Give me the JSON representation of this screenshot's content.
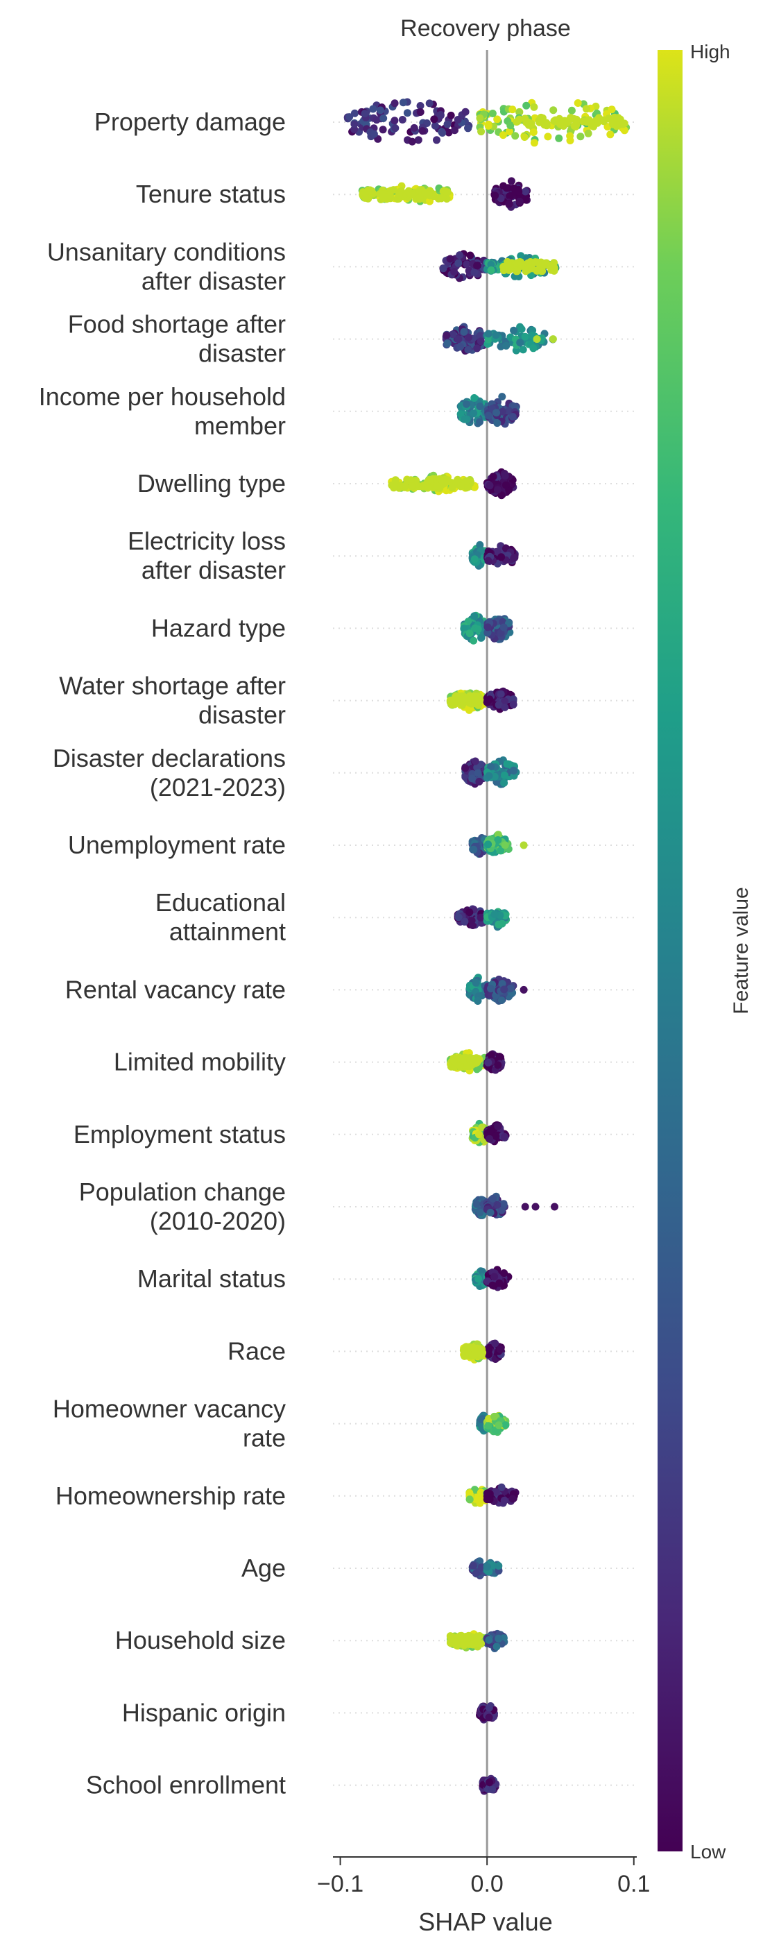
{
  "chart_data": {
    "type": "scatter",
    "subtype": "shap-beeswarm",
    "title": "Recovery phase",
    "xlabel": "SHAP value",
    "xlim": [
      -0.105,
      0.102
    ],
    "xticks": [
      {
        "value": -0.1,
        "label": "−0.1"
      },
      {
        "value": 0.0,
        "label": "0.0"
      },
      {
        "value": 0.1,
        "label": "0.1"
      }
    ],
    "colorbar": {
      "label": "Feature value",
      "high_label": "High",
      "low_label": "Low",
      "colormap": "viridis"
    },
    "features": [
      {
        "name": "Property damage",
        "neg": [
          -0.095,
          -0.012,
          1.0
        ],
        "pos": [
          -0.005,
          0.095,
          1.0
        ],
        "neg_color": 0.15,
        "pos_color": 0.95,
        "yellow_tail": [
          0.02,
          0.095
        ],
        "outliers": []
      },
      {
        "name": "Tenure status",
        "neg": [
          -0.085,
          -0.02,
          0.4
        ],
        "pos": [
          0.005,
          0.028,
          0.55
        ],
        "neg_color": 0.97,
        "pos_color": 0.02,
        "yellow_tail": [
          -0.085,
          -0.025
        ],
        "outliers": []
      },
      {
        "name": "Unsanitary conditions\nafter disaster",
        "neg": [
          -0.03,
          0.0,
          0.55
        ],
        "pos": [
          0.0,
          0.047,
          0.45
        ],
        "neg_color": 0.1,
        "pos_color": 0.6,
        "yellow_tail": [
          0.01,
          0.047
        ],
        "outliers": []
      },
      {
        "name": "Food shortage after\ndisaster",
        "neg": [
          -0.028,
          0.0,
          0.55
        ],
        "pos": [
          0.0,
          0.045,
          0.5
        ],
        "neg_color": 0.2,
        "pos_color": 0.55,
        "yellow_tail": [],
        "outliers": [
          0.034,
          0.045
        ]
      },
      {
        "name": "Income per household\nmember",
        "neg": [
          -0.018,
          0.0,
          0.6
        ],
        "pos": [
          0.0,
          0.02,
          0.6
        ],
        "neg_color": 0.5,
        "pos_color": 0.25,
        "yellow_tail": [],
        "outliers": []
      },
      {
        "name": "Dwelling type",
        "neg": [
          -0.065,
          -0.005,
          0.35
        ],
        "pos": [
          0.0,
          0.018,
          0.5
        ],
        "neg_color": 0.97,
        "pos_color": 0.02,
        "yellow_tail": [
          -0.065,
          -0.01
        ],
        "outliers": []
      },
      {
        "name": "Electricity loss\nafter disaster",
        "neg": [
          -0.01,
          0.0,
          0.45
        ],
        "pos": [
          0.0,
          0.02,
          0.45
        ],
        "neg_color": 0.55,
        "pos_color": 0.05,
        "yellow_tail": [],
        "outliers": []
      },
      {
        "name": "Hazard type",
        "neg": [
          -0.016,
          0.0,
          0.55
        ],
        "pos": [
          0.0,
          0.016,
          0.55
        ],
        "neg_color": 0.6,
        "pos_color": 0.3,
        "yellow_tail": [],
        "outliers": []
      },
      {
        "name": "Water shortage after\ndisaster",
        "neg": [
          -0.025,
          0.0,
          0.4
        ],
        "pos": [
          0.0,
          0.018,
          0.45
        ],
        "neg_color": 0.97,
        "pos_color": 0.05,
        "yellow_tail": [
          -0.025,
          -0.005
        ],
        "outliers": []
      },
      {
        "name": "Disaster declarations\n(2021-2023)",
        "neg": [
          -0.015,
          0.0,
          0.55
        ],
        "pos": [
          0.0,
          0.02,
          0.55
        ],
        "neg_color": 0.15,
        "pos_color": 0.5,
        "yellow_tail": [],
        "outliers": []
      },
      {
        "name": "Unemployment rate",
        "neg": [
          -0.01,
          0.0,
          0.4
        ],
        "pos": [
          0.0,
          0.015,
          0.45
        ],
        "neg_color": 0.3,
        "pos_color": 0.75,
        "yellow_tail": [],
        "outliers": [
          0.025
        ]
      },
      {
        "name": "Educational\nattainment",
        "neg": [
          -0.02,
          0.0,
          0.4
        ],
        "pos": [
          0.0,
          0.013,
          0.4
        ],
        "neg_color": 0.1,
        "pos_color": 0.6,
        "yellow_tail": [],
        "outliers": []
      },
      {
        "name": "Rental vacancy rate",
        "neg": [
          -0.012,
          0.0,
          0.5
        ],
        "pos": [
          0.0,
          0.018,
          0.5
        ],
        "neg_color": 0.5,
        "pos_color": 0.25,
        "yellow_tail": [],
        "outliers": [
          0.025
        ]
      },
      {
        "name": "Limited mobility",
        "neg": [
          -0.025,
          0.0,
          0.4
        ],
        "pos": [
          0.0,
          0.01,
          0.4
        ],
        "neg_color": 0.97,
        "pos_color": 0.02,
        "yellow_tail": [
          -0.025,
          -0.005
        ],
        "outliers": []
      },
      {
        "name": "Employment status",
        "neg": [
          -0.01,
          0.0,
          0.45
        ],
        "pos": [
          0.0,
          0.013,
          0.4
        ],
        "neg_color": 0.9,
        "pos_color": 0.05,
        "yellow_tail": [],
        "outliers": []
      },
      {
        "name": "Population change\n(2010-2020)",
        "neg": [
          -0.008,
          0.0,
          0.4
        ],
        "pos": [
          0.0,
          0.012,
          0.45
        ],
        "neg_color": 0.4,
        "pos_color": 0.2,
        "yellow_tail": [],
        "outliers": [
          0.026,
          0.033,
          0.046
        ]
      },
      {
        "name": "Marital status",
        "neg": [
          -0.008,
          0.0,
          0.35
        ],
        "pos": [
          0.0,
          0.015,
          0.4
        ],
        "neg_color": 0.6,
        "pos_color": 0.02,
        "yellow_tail": [],
        "outliers": []
      },
      {
        "name": "Race",
        "neg": [
          -0.016,
          0.0,
          0.35
        ],
        "pos": [
          0.0,
          0.01,
          0.35
        ],
        "neg_color": 0.97,
        "pos_color": 0.05,
        "yellow_tail": [
          -0.016,
          -0.003
        ],
        "outliers": []
      },
      {
        "name": "Homeowner vacancy\nrate",
        "neg": [
          -0.005,
          0.0,
          0.35
        ],
        "pos": [
          0.0,
          0.013,
          0.4
        ],
        "neg_color": 0.5,
        "pos_color": 0.85,
        "yellow_tail": [],
        "outliers": []
      },
      {
        "name": "Homeownership rate",
        "neg": [
          -0.012,
          0.0,
          0.35
        ],
        "pos": [
          0.0,
          0.02,
          0.35
        ],
        "neg_color": 0.95,
        "pos_color": 0.05,
        "yellow_tail": [],
        "outliers": []
      },
      {
        "name": "Age",
        "neg": [
          -0.01,
          0.0,
          0.3
        ],
        "pos": [
          0.0,
          0.008,
          0.3
        ],
        "neg_color": 0.3,
        "pos_color": 0.4,
        "yellow_tail": [],
        "outliers": []
      },
      {
        "name": "Household size",
        "neg": [
          -0.025,
          0.0,
          0.35
        ],
        "pos": [
          0.0,
          0.012,
          0.35
        ],
        "neg_color": 0.97,
        "pos_color": 0.3,
        "yellow_tail": [
          -0.025,
          -0.004
        ],
        "outliers": []
      },
      {
        "name": "Hispanic origin",
        "neg": [
          -0.005,
          0.0,
          0.3
        ],
        "pos": [
          0.0,
          0.005,
          0.3
        ],
        "neg_color": 0.05,
        "pos_color": 0.05,
        "yellow_tail": [],
        "outliers": []
      },
      {
        "name": "School enrollment",
        "neg": [
          -0.003,
          0.0,
          0.3
        ],
        "pos": [
          0.0,
          0.006,
          0.3
        ],
        "neg_color": 0.05,
        "pos_color": 0.1,
        "yellow_tail": [],
        "outliers": []
      }
    ]
  }
}
